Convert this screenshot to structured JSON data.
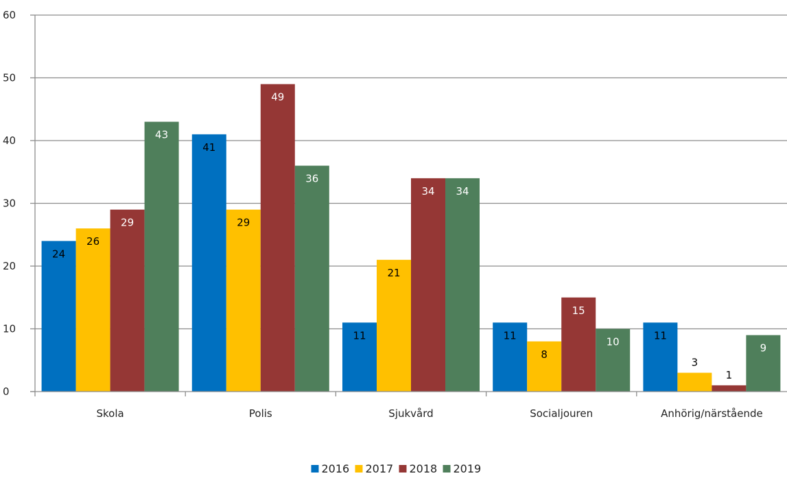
{
  "chart_data": {
    "type": "bar",
    "categories": [
      "Skola",
      "Polis",
      "Sjukvård",
      "Socialjouren",
      "Anhörig/närstående"
    ],
    "series": [
      {
        "name": "2016",
        "color": "#0070C0",
        "label_color": "#000000",
        "values": [
          24,
          41,
          11,
          11,
          11
        ]
      },
      {
        "name": "2017",
        "color": "#FFC000",
        "label_color": "#000000",
        "values": [
          26,
          29,
          21,
          8,
          3
        ]
      },
      {
        "name": "2018",
        "color": "#953735",
        "label_color": "#ffffff",
        "values": [
          29,
          49,
          34,
          15,
          1
        ]
      },
      {
        "name": "2019",
        "color": "#4F7F5B",
        "label_color": "#ffffff",
        "values": [
          43,
          36,
          34,
          10,
          9
        ]
      }
    ],
    "title": "",
    "xlabel": "",
    "ylabel": "",
    "ylim": [
      0,
      60
    ],
    "yticks": [
      0,
      10,
      20,
      30,
      40,
      50,
      60
    ],
    "grid": true,
    "legend_position": "bottom"
  }
}
